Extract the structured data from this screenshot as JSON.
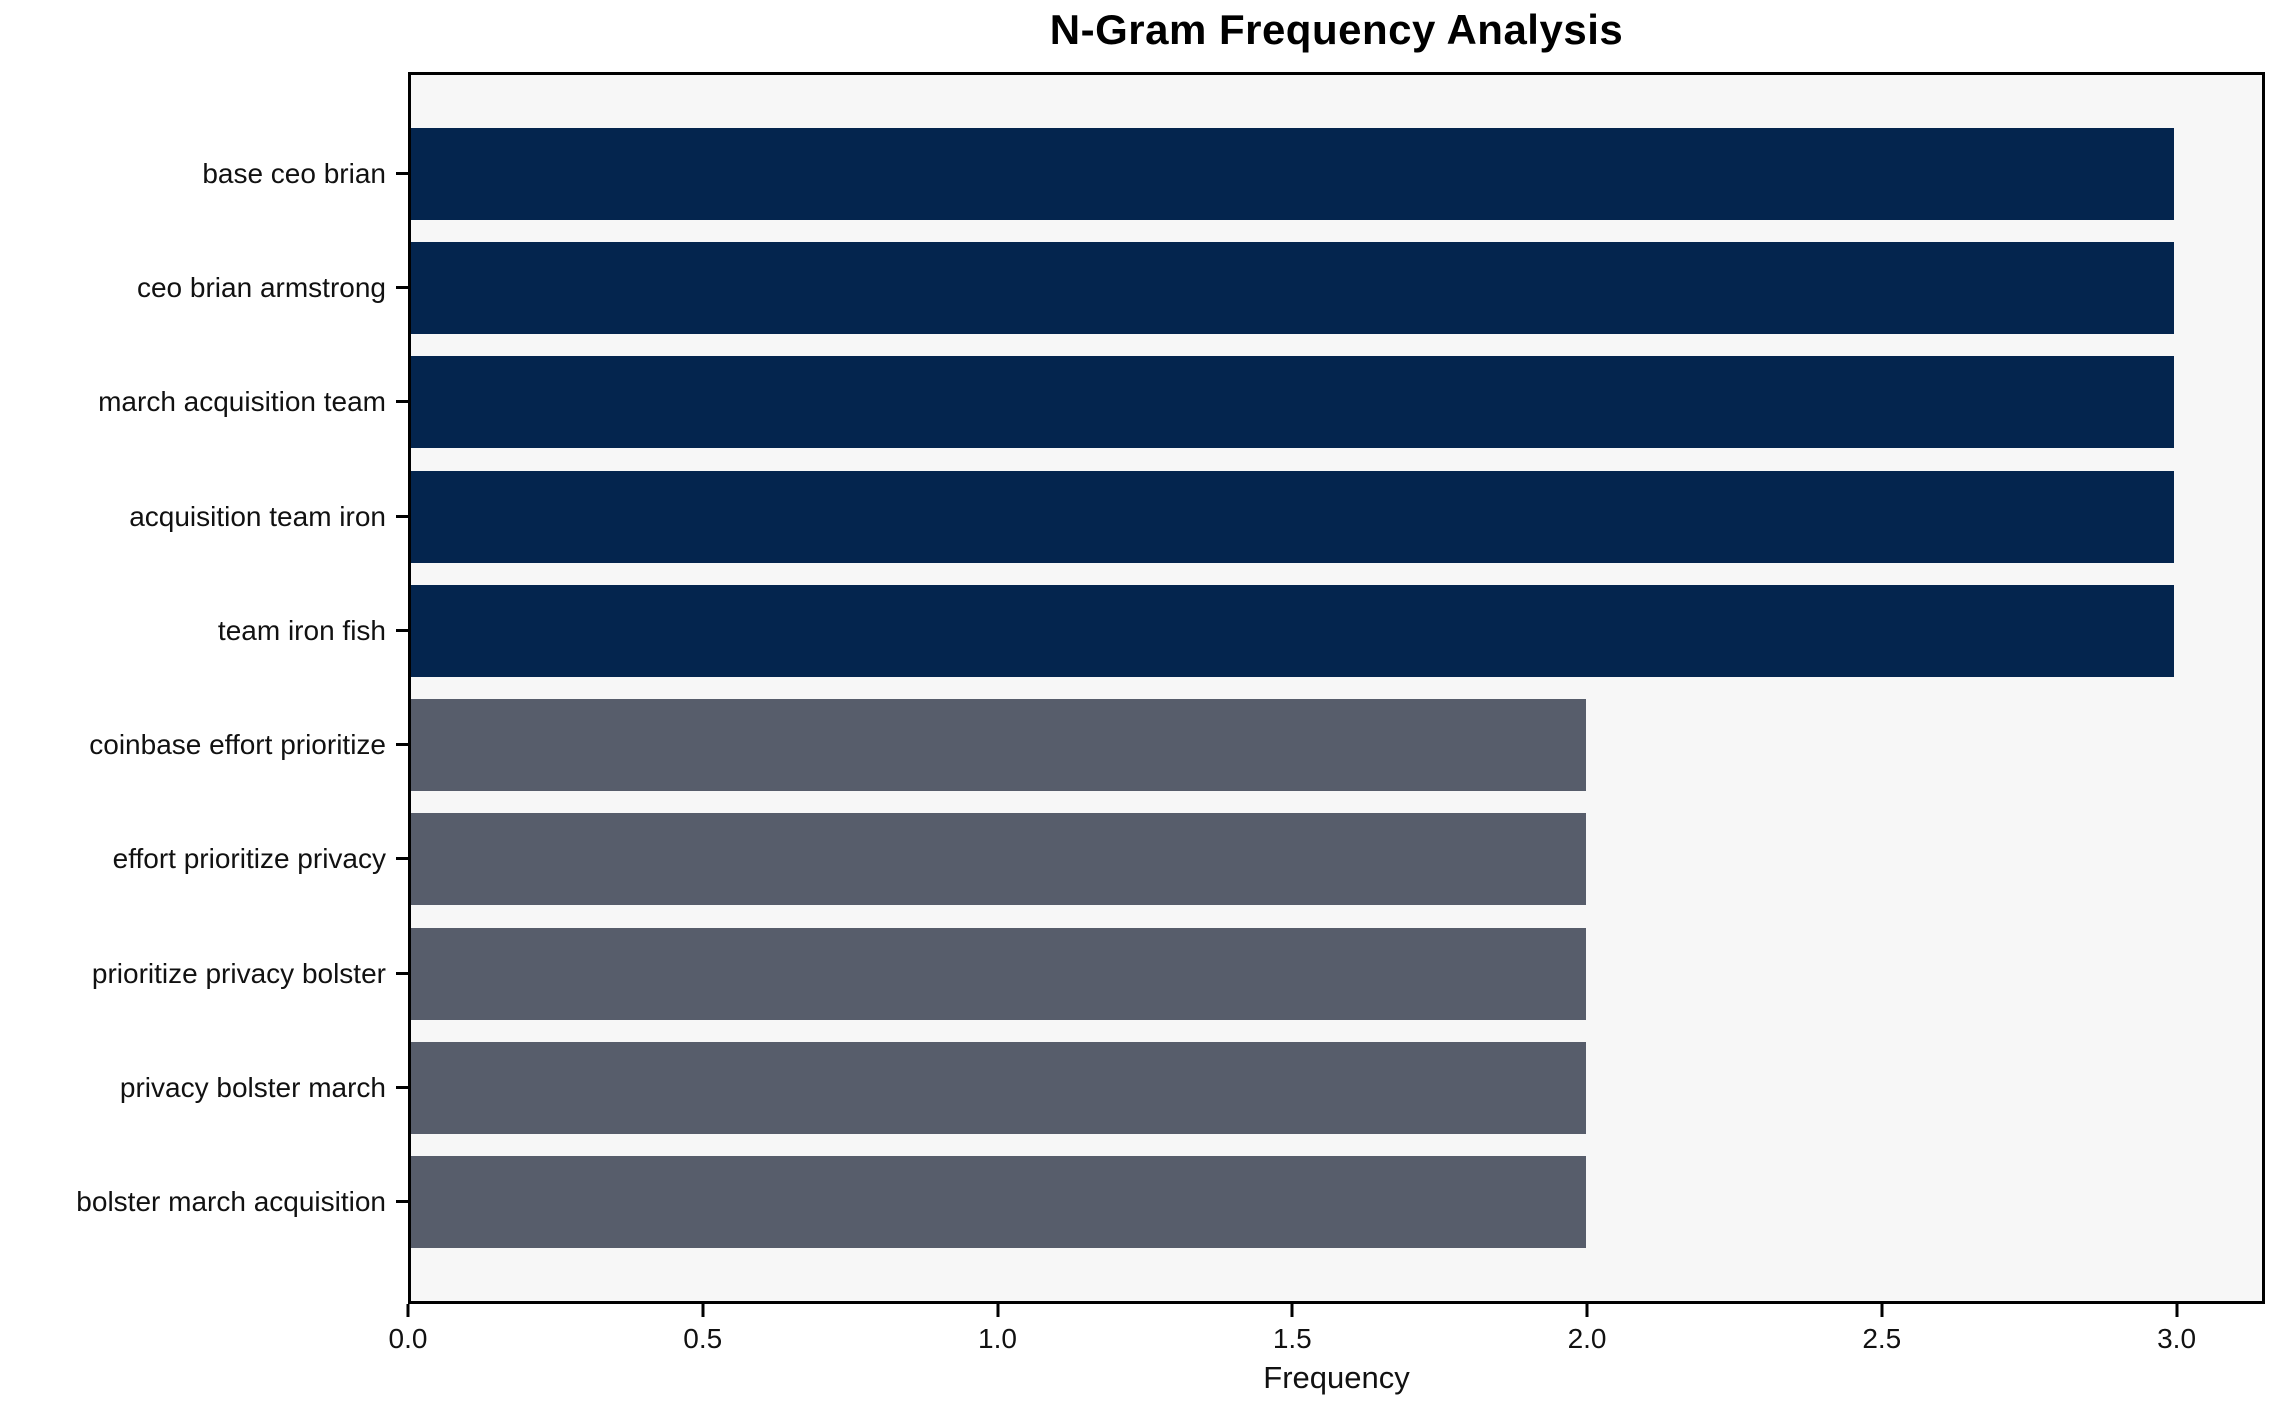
{
  "chart_data": {
    "type": "bar",
    "orientation": "horizontal",
    "title": "N-Gram Frequency Analysis",
    "xlabel": "Frequency",
    "ylabel": "",
    "categories": [
      "base ceo brian",
      "ceo brian armstrong",
      "march acquisition team",
      "acquisition team iron",
      "team iron fish",
      "coinbase effort prioritize",
      "effort prioritize privacy",
      "prioritize privacy bolster",
      "privacy bolster march",
      "bolster march acquisition"
    ],
    "values": [
      3,
      3,
      3,
      3,
      3,
      2,
      2,
      2,
      2,
      2
    ],
    "bar_colors": [
      "#04254e",
      "#04254e",
      "#04254e",
      "#04254e",
      "#04254e",
      "#575d6b",
      "#575d6b",
      "#575d6b",
      "#575d6b",
      "#575d6b"
    ],
    "xlim": [
      0,
      3.15
    ],
    "xticks": [
      0,
      0.5,
      1.0,
      1.5,
      2.0,
      2.5,
      3.0
    ],
    "xtick_labels": [
      "0.0",
      "0.5",
      "1.0",
      "1.5",
      "2.0",
      "2.5",
      "3.0"
    ],
    "grid": false,
    "legend_position": "none",
    "colors": {
      "bar_high": "#04254e",
      "bar_low": "#575d6b",
      "plot_background": "#f7f7f7",
      "figure_background": "#ffffff",
      "axis": "#000000",
      "text": "#111111"
    }
  }
}
